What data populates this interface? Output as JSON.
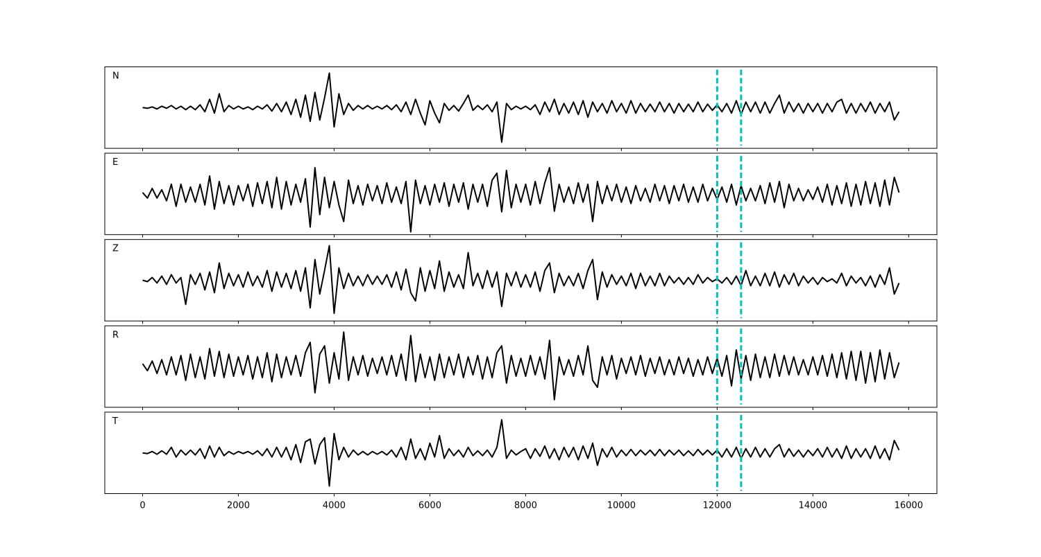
{
  "chart_data": {
    "type": "line",
    "x": [
      0,
      100,
      200,
      300,
      400,
      500,
      600,
      700,
      800,
      900,
      1000,
      1100,
      1200,
      1300,
      1400,
      1500,
      1600,
      1700,
      1800,
      1900,
      2000,
      2100,
      2200,
      2300,
      2400,
      2500,
      2600,
      2700,
      2800,
      2900,
      3000,
      3100,
      3200,
      3300,
      3400,
      3500,
      3600,
      3700,
      3800,
      3900,
      4000,
      4100,
      4200,
      4300,
      4400,
      4500,
      4600,
      4700,
      4800,
      4900,
      5000,
      5100,
      5200,
      5300,
      5400,
      5500,
      5600,
      5700,
      5800,
      5900,
      6000,
      6100,
      6200,
      6300,
      6400,
      6500,
      6600,
      6700,
      6800,
      6900,
      7000,
      7100,
      7200,
      7300,
      7400,
      7500,
      7600,
      7700,
      7800,
      7900,
      8000,
      8100,
      8200,
      8300,
      8400,
      8500,
      8600,
      8700,
      8800,
      8900,
      9000,
      9100,
      9200,
      9300,
      9400,
      9500,
      9600,
      9700,
      9800,
      9900,
      10000,
      10100,
      10200,
      10300,
      10400,
      10500,
      10600,
      10700,
      10800,
      10900,
      11000,
      11100,
      11200,
      11300,
      11400,
      11500,
      11600,
      11700,
      11800,
      11900,
      12000,
      12100,
      12200,
      12300,
      12400,
      12500,
      12600,
      12700,
      12800,
      12900,
      13000,
      13100,
      13200,
      13300,
      13400,
      13500,
      13600,
      13700,
      13800,
      13900,
      14000,
      14100,
      14200,
      14300,
      14400,
      14500,
      14600,
      14700,
      14800,
      14900,
      15000,
      15100,
      15200,
      15300,
      15400,
      15500,
      15600,
      15700,
      15800
    ],
    "series": [
      {
        "name": "N",
        "color": "#000000",
        "values": [
          0,
          -1,
          1,
          -2,
          2,
          -1,
          3,
          -2,
          2,
          -3,
          2,
          -3,
          4,
          -6,
          12,
          -8,
          20,
          -6,
          3,
          -2,
          2,
          -2,
          1,
          -3,
          2,
          -2,
          4,
          -5,
          6,
          -6,
          8,
          -10,
          12,
          -14,
          18,
          -20,
          22,
          -18,
          14,
          50,
          -28,
          20,
          -10,
          6,
          -4,
          3,
          -2,
          3,
          -2,
          2,
          -2,
          3,
          -3,
          4,
          -6,
          8,
          -10,
          12,
          -8,
          -25,
          10,
          -8,
          -22,
          6,
          -4,
          3,
          -5,
          6,
          18,
          -4,
          3,
          -3,
          4,
          -6,
          8,
          -50,
          6,
          -3,
          2,
          -2,
          2,
          -3,
          4,
          -10,
          8,
          -6,
          12,
          -10,
          6,
          -8,
          8,
          -10,
          10,
          -14,
          8,
          -6,
          6,
          -8,
          10,
          -6,
          6,
          -8,
          10,
          -8,
          6,
          -6,
          5,
          -6,
          8,
          -6,
          6,
          -8,
          6,
          -6,
          5,
          -6,
          8,
          -6,
          5,
          -4,
          4,
          -6,
          6,
          -8,
          10,
          -10,
          8,
          -6,
          8,
          -8,
          8,
          -8,
          6,
          18,
          -8,
          8,
          -6,
          6,
          -8,
          6,
          -6,
          6,
          -8,
          6,
          -6,
          8,
          12,
          -8,
          6,
          -8,
          6,
          -6,
          8,
          -8,
          6,
          -6,
          8,
          -18,
          -6
        ]
      },
      {
        "name": "E",
        "color": "#000000",
        "values": [
          2,
          -6,
          8,
          -6,
          6,
          -10,
          14,
          -18,
          14,
          -12,
          10,
          -12,
          14,
          -16,
          26,
          -22,
          18,
          -14,
          12,
          -16,
          12,
          -10,
          14,
          -18,
          16,
          -14,
          18,
          -20,
          24,
          -22,
          18,
          -16,
          14,
          -12,
          22,
          -48,
          38,
          -30,
          24,
          -20,
          18,
          -16,
          -40,
          20,
          -14,
          12,
          -16,
          14,
          -10,
          12,
          -14,
          16,
          -12,
          10,
          -14,
          18,
          -55,
          20,
          -14,
          12,
          -16,
          14,
          -12,
          16,
          -18,
          14,
          -12,
          16,
          -22,
          14,
          -12,
          14,
          -18,
          20,
          30,
          -26,
          34,
          -20,
          14,
          -12,
          14,
          -16,
          18,
          -14,
          16,
          38,
          -25,
          14,
          -12,
          10,
          -14,
          16,
          -12,
          14,
          -40,
          18,
          -14,
          12,
          -10,
          14,
          -12,
          10,
          -14,
          12,
          -10,
          8,
          -12,
          14,
          -10,
          12,
          -14,
          12,
          -10,
          14,
          -12,
          10,
          -12,
          14,
          -10,
          8,
          -8,
          10,
          -12,
          14,
          -16,
          12,
          -10,
          8,
          -10,
          12,
          -14,
          16,
          -12,
          18,
          -20,
          14,
          -10,
          8,
          -10,
          6,
          -8,
          10,
          -12,
          14,
          -16,
          12,
          -14,
          16,
          -18,
          14,
          -16,
          18,
          -14,
          16,
          -18,
          20,
          -16,
          24,
          2
        ]
      },
      {
        "name": "Z",
        "color": "#000000",
        "values": [
          0,
          -2,
          4,
          -4,
          6,
          -6,
          8,
          -4,
          4,
          -35,
          8,
          -6,
          10,
          -14,
          12,
          -18,
          25,
          -12,
          10,
          -8,
          8,
          -10,
          12,
          -8,
          6,
          -10,
          14,
          -16,
          12,
          -10,
          10,
          -12,
          14,
          -16,
          18,
          -40,
          30,
          -20,
          14,
          50,
          -48,
          18,
          -12,
          10,
          -8,
          6,
          -8,
          8,
          -6,
          6,
          -6,
          8,
          -10,
          12,
          -14,
          16,
          -18,
          -30,
          18,
          -16,
          14,
          -12,
          28,
          -16,
          12,
          -10,
          8,
          -12,
          40,
          -8,
          10,
          -12,
          14,
          -10,
          12,
          -38,
          10,
          -8,
          12,
          -10,
          8,
          -10,
          12,
          -16,
          14,
          25,
          -18,
          10,
          -8,
          6,
          -8,
          10,
          -12,
          14,
          30,
          -28,
          12,
          -10,
          8,
          -6,
          6,
          -8,
          10,
          -12,
          10,
          -8,
          6,
          -8,
          10,
          -8,
          6,
          -4,
          4,
          -6,
          4,
          -6,
          8,
          -4,
          4,
          -2,
          2,
          -4,
          4,
          -6,
          6,
          -8,
          14,
          -8,
          6,
          -8,
          10,
          -8,
          12,
          -10,
          8,
          -6,
          10,
          -8,
          6,
          -4,
          4,
          -6,
          4,
          -2,
          2,
          -4,
          10,
          -8,
          6,
          -4,
          4,
          -8,
          6,
          -10,
          8,
          -6,
          18,
          -20,
          -4
        ]
      },
      {
        "name": "R",
        "color": "#000000",
        "values": [
          4,
          -6,
          8,
          -10,
          10,
          -12,
          14,
          -12,
          16,
          -20,
          18,
          -16,
          14,
          -18,
          26,
          -14,
          22,
          -16,
          18,
          -14,
          14,
          -12,
          16,
          -18,
          14,
          -16,
          20,
          -22,
          18,
          -16,
          14,
          -12,
          16,
          -14,
          20,
          35,
          -38,
          18,
          30,
          -24,
          20,
          -18,
          50,
          -20,
          14,
          -12,
          16,
          -14,
          12,
          -10,
          14,
          -12,
          16,
          -14,
          18,
          -20,
          45,
          -22,
          18,
          -16,
          14,
          -20,
          18,
          -16,
          14,
          -12,
          18,
          -16,
          14,
          -12,
          16,
          -18,
          14,
          -16,
          20,
          30,
          -24,
          16,
          -14,
          12,
          -14,
          16,
          -12,
          14,
          -18,
          38,
          -48,
          14,
          -12,
          10,
          -14,
          16,
          -12,
          30,
          -20,
          -30,
          14,
          -12,
          16,
          -18,
          12,
          -10,
          14,
          -12,
          16,
          -14,
          12,
          -10,
          14,
          -12,
          10,
          -12,
          14,
          -10,
          12,
          -14,
          10,
          -12,
          14,
          -10,
          12,
          -14,
          16,
          -28,
          24,
          -18,
          16,
          -20,
          18,
          -16,
          14,
          -16,
          18,
          -14,
          16,
          -12,
          14,
          -12,
          10,
          -12,
          14,
          -12,
          16,
          -14,
          18,
          -16,
          20,
          -18,
          22,
          -20,
          22,
          -24,
          20,
          -22,
          24,
          -18,
          20,
          -16,
          6
        ]
      },
      {
        "name": "T",
        "color": "#000000",
        "values": [
          0,
          -1,
          2,
          -2,
          3,
          -2,
          8,
          -6,
          4,
          -3,
          4,
          -3,
          6,
          -8,
          10,
          -6,
          8,
          -4,
          2,
          -2,
          2,
          -1,
          2,
          -2,
          3,
          -4,
          6,
          -6,
          8,
          -6,
          8,
          -10,
          12,
          -14,
          16,
          20,
          -16,
          12,
          22,
          -48,
          28,
          -10,
          8,
          -6,
          4,
          -3,
          2,
          -3,
          2,
          -2,
          2,
          -3,
          4,
          -6,
          8,
          -10,
          20,
          -8,
          6,
          -10,
          14,
          -6,
          25,
          -8,
          6,
          -4,
          4,
          -6,
          8,
          -4,
          3,
          -4,
          4,
          -6,
          8,
          48,
          -8,
          4,
          -3,
          2,
          6,
          -8,
          6,
          -5,
          10,
          -8,
          6,
          -10,
          8,
          -6,
          8,
          -10,
          10,
          -8,
          14,
          -18,
          6,
          -6,
          8,
          -6,
          4,
          -4,
          5,
          -4,
          4,
          -3,
          4,
          -4,
          5,
          -4,
          4,
          -3,
          4,
          -4,
          3,
          -4,
          5,
          -3,
          4,
          -3,
          4,
          -6,
          6,
          -6,
          8,
          -8,
          6,
          -6,
          8,
          -6,
          6,
          -6,
          6,
          12,
          -6,
          6,
          -5,
          4,
          -6,
          4,
          -4,
          6,
          -6,
          8,
          -6,
          6,
          -8,
          10,
          -8,
          6,
          -6,
          6,
          -8,
          10,
          -8,
          6,
          -10,
          18,
          4
        ]
      }
    ],
    "xlim": [
      -790,
      16590
    ],
    "xticks": [
      0,
      2000,
      4000,
      6000,
      8000,
      10000,
      12000,
      14000,
      16000
    ],
    "ylim": [
      -59,
      59
    ],
    "vlines": [
      12000,
      12500
    ],
    "vline_color": "#00bfbf"
  }
}
